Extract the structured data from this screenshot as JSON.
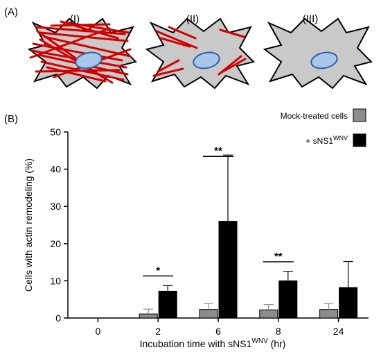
{
  "panel_a": {
    "label": "(A)",
    "cells": [
      {
        "label": "(I)",
        "fibers": "dense"
      },
      {
        "label": "(II)",
        "fibers": "sparse"
      },
      {
        "label": "(III)",
        "fibers": "none"
      }
    ],
    "colors": {
      "cell_fill": "#c9c9c9",
      "cell_stroke": "#000000",
      "actin": "#d40000",
      "nucleus_fill": "#a9c6ea",
      "nucleus_stroke": "#2d5fa6"
    }
  },
  "panel_b": {
    "label": "(B)"
  },
  "chart_data": {
    "type": "bar",
    "title": "",
    "xlabel": {
      "base": "Incubation time with sNS1",
      "sup": "WNV",
      "suffix": " (hr)"
    },
    "ylabel": "Cells with actin remodeling (%)",
    "ylim": [
      0,
      50
    ],
    "yticks": [
      0,
      10,
      20,
      30,
      40,
      50
    ],
    "categories": [
      "0",
      "2",
      "6",
      "8",
      "24"
    ],
    "series": [
      {
        "name": "Mock-treated cells",
        "name_sup": "",
        "color": "#8c8c8c",
        "values": [
          0,
          1.1,
          2.3,
          2.2,
          2.3
        ],
        "errors": [
          0,
          1.3,
          1.6,
          1.4,
          1.6
        ]
      },
      {
        "name": "+ sNS1",
        "name_sup": "WNV",
        "color": "#000000",
        "values": [
          0,
          7.2,
          26.0,
          10.0,
          8.2
        ],
        "errors": [
          0,
          1.5,
          17.8,
          2.5,
          7.0
        ]
      }
    ],
    "significance": [
      {
        "category": "2",
        "label": "*"
      },
      {
        "category": "6",
        "label": "**"
      },
      {
        "category": "8",
        "label": "**"
      }
    ],
    "legend_position": "top-right",
    "grid": false
  }
}
